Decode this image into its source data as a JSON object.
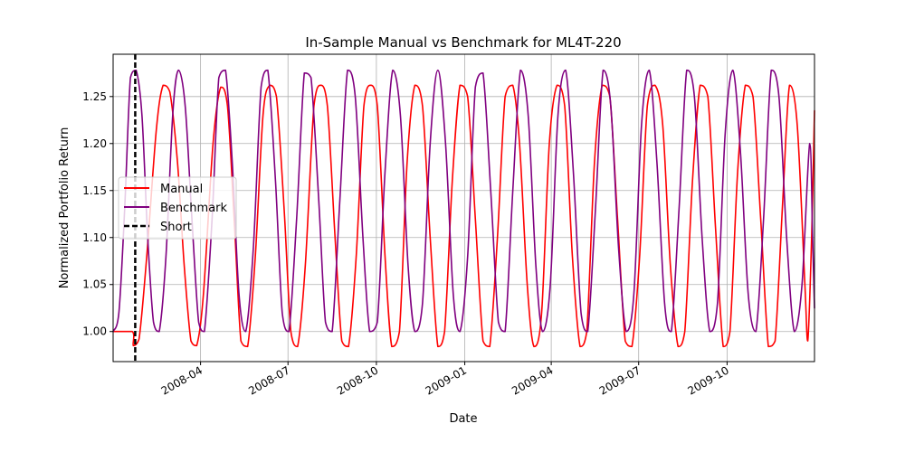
{
  "chart_data": {
    "type": "line",
    "title": "In-Sample Manual vs Benchmark for ML4T-220",
    "xlabel": "Date",
    "ylabel": "Normalized Portfolio Return",
    "xlim": [
      "2008-01-01",
      "2009-12-31"
    ],
    "ylim": [
      0.968,
      1.295
    ],
    "x_ticks": [
      "2008-04",
      "2008-07",
      "2008-10",
      "2009-01",
      "2009-04",
      "2009-07",
      "2009-10"
    ],
    "y_ticks": [
      1.0,
      1.05,
      1.1,
      1.15,
      1.2,
      1.25
    ],
    "y_tick_labels": [
      "1.00",
      "1.05",
      "1.10",
      "1.15",
      "1.20",
      "1.25"
    ],
    "grid": true,
    "legend_position": "center-left",
    "series": [
      {
        "name": "Manual",
        "color": "#ff0000",
        "points": [
          [
            "2008-01-01",
            1.0
          ],
          [
            "2008-01-21",
            1.0
          ],
          [
            "2008-01-22",
            0.985
          ],
          [
            "2008-01-28",
            0.992
          ],
          [
            "2008-02-05",
            1.08
          ],
          [
            "2008-02-15",
            1.215
          ],
          [
            "2008-02-22",
            1.262
          ],
          [
            "2008-02-29",
            1.255
          ],
          [
            "2008-03-08",
            1.18
          ],
          [
            "2008-03-15",
            1.07
          ],
          [
            "2008-03-22",
            0.99
          ],
          [
            "2008-03-28",
            0.985
          ],
          [
            "2008-04-04",
            1.04
          ],
          [
            "2008-04-14",
            1.2
          ],
          [
            "2008-04-22",
            1.26
          ],
          [
            "2008-04-29",
            1.24
          ],
          [
            "2008-05-06",
            1.12
          ],
          [
            "2008-05-13",
            0.99
          ],
          [
            "2008-05-20",
            0.984
          ],
          [
            "2008-05-28",
            1.08
          ],
          [
            "2008-06-05",
            1.23
          ],
          [
            "2008-06-12",
            1.262
          ],
          [
            "2008-06-19",
            1.25
          ],
          [
            "2008-06-27",
            1.13
          ],
          [
            "2008-07-04",
            1.0
          ],
          [
            "2008-07-11",
            0.984
          ],
          [
            "2008-07-19",
            1.07
          ],
          [
            "2008-07-28",
            1.24
          ],
          [
            "2008-08-04",
            1.262
          ],
          [
            "2008-08-11",
            1.24
          ],
          [
            "2008-08-19",
            1.1
          ],
          [
            "2008-08-26",
            0.99
          ],
          [
            "2008-09-02",
            0.984
          ],
          [
            "2008-09-10",
            1.08
          ],
          [
            "2008-09-18",
            1.24
          ],
          [
            "2008-09-25",
            1.262
          ],
          [
            "2008-10-02",
            1.24
          ],
          [
            "2008-10-10",
            1.08
          ],
          [
            "2008-10-17",
            0.984
          ],
          [
            "2008-10-25",
            1.0
          ],
          [
            "2008-11-02",
            1.18
          ],
          [
            "2008-11-10",
            1.262
          ],
          [
            "2008-11-18",
            1.24
          ],
          [
            "2008-11-26",
            1.1
          ],
          [
            "2008-12-04",
            0.984
          ],
          [
            "2008-12-11",
            1.0
          ],
          [
            "2008-12-19",
            1.16
          ],
          [
            "2008-12-27",
            1.262
          ],
          [
            "2009-01-04",
            1.25
          ],
          [
            "2009-01-12",
            1.12
          ],
          [
            "2009-01-20",
            0.99
          ],
          [
            "2009-01-27",
            0.984
          ],
          [
            "2009-02-04",
            1.1
          ],
          [
            "2009-02-12",
            1.25
          ],
          [
            "2009-02-20",
            1.262
          ],
          [
            "2009-02-27",
            1.2
          ],
          [
            "2009-03-07",
            1.05
          ],
          [
            "2009-03-14",
            0.984
          ],
          [
            "2009-03-22",
            1.02
          ],
          [
            "2009-03-30",
            1.2
          ],
          [
            "2009-04-07",
            1.262
          ],
          [
            "2009-04-15",
            1.24
          ],
          [
            "2009-04-23",
            1.08
          ],
          [
            "2009-05-01",
            0.984
          ],
          [
            "2009-05-08",
            1.0
          ],
          [
            "2009-05-16",
            1.18
          ],
          [
            "2009-05-24",
            1.262
          ],
          [
            "2009-06-01",
            1.25
          ],
          [
            "2009-06-09",
            1.12
          ],
          [
            "2009-06-17",
            0.99
          ],
          [
            "2009-06-24",
            0.984
          ],
          [
            "2009-07-02",
            1.08
          ],
          [
            "2009-07-10",
            1.24
          ],
          [
            "2009-07-18",
            1.262
          ],
          [
            "2009-07-26",
            1.22
          ],
          [
            "2009-08-03",
            1.07
          ],
          [
            "2009-08-11",
            0.984
          ],
          [
            "2009-08-18",
            1.0
          ],
          [
            "2009-08-26",
            1.16
          ],
          [
            "2009-09-03",
            1.262
          ],
          [
            "2009-09-11",
            1.25
          ],
          [
            "2009-09-19",
            1.11
          ],
          [
            "2009-09-27",
            0.984
          ],
          [
            "2009-10-04",
            1.0
          ],
          [
            "2009-10-12",
            1.17
          ],
          [
            "2009-10-20",
            1.262
          ],
          [
            "2009-10-28",
            1.25
          ],
          [
            "2009-11-05",
            1.12
          ],
          [
            "2009-11-13",
            0.984
          ],
          [
            "2009-11-20",
            0.99
          ],
          [
            "2009-11-28",
            1.14
          ],
          [
            "2009-12-05",
            1.262
          ],
          [
            "2009-12-13",
            1.22
          ],
          [
            "2009-12-21",
            1.05
          ],
          [
            "2009-12-24",
            0.99
          ],
          [
            "2009-12-28",
            1.1
          ],
          [
            "2009-12-31",
            1.235
          ]
        ]
      },
      {
        "name": "Benchmark",
        "color": "#800080",
        "points": [
          [
            "2008-01-01",
            1.0
          ],
          [
            "2008-01-07",
            1.02
          ],
          [
            "2008-01-13",
            1.13
          ],
          [
            "2008-01-19",
            1.27
          ],
          [
            "2008-01-25",
            1.278
          ],
          [
            "2008-01-31",
            1.23
          ],
          [
            "2008-02-06",
            1.1
          ],
          [
            "2008-02-12",
            1.01
          ],
          [
            "2008-02-18",
            1.0
          ],
          [
            "2008-02-25",
            1.08
          ],
          [
            "2008-03-03",
            1.23
          ],
          [
            "2008-03-09",
            1.278
          ],
          [
            "2008-03-16",
            1.24
          ],
          [
            "2008-03-23",
            1.12
          ],
          [
            "2008-03-30",
            1.01
          ],
          [
            "2008-04-05",
            1.0
          ],
          [
            "2008-04-13",
            1.12
          ],
          [
            "2008-04-20",
            1.27
          ],
          [
            "2008-04-27",
            1.278
          ],
          [
            "2008-05-04",
            1.18
          ],
          [
            "2008-05-11",
            1.04
          ],
          [
            "2008-05-18",
            1.0
          ],
          [
            "2008-05-26",
            1.09
          ],
          [
            "2008-06-03",
            1.26
          ],
          [
            "2008-06-10",
            1.278
          ],
          [
            "2008-06-18",
            1.16
          ],
          [
            "2008-06-25",
            1.02
          ],
          [
            "2008-07-02",
            1.0
          ],
          [
            "2008-07-10",
            1.12
          ],
          [
            "2008-07-18",
            1.275
          ],
          [
            "2008-07-25",
            1.27
          ],
          [
            "2008-08-02",
            1.14
          ],
          [
            "2008-08-09",
            1.01
          ],
          [
            "2008-08-16",
            1.0
          ],
          [
            "2008-08-24",
            1.14
          ],
          [
            "2008-09-01",
            1.278
          ],
          [
            "2008-09-09",
            1.25
          ],
          [
            "2008-09-17",
            1.1
          ],
          [
            "2008-09-24",
            1.0
          ],
          [
            "2008-10-02",
            1.01
          ],
          [
            "2008-10-10",
            1.17
          ],
          [
            "2008-10-18",
            1.278
          ],
          [
            "2008-10-26",
            1.23
          ],
          [
            "2008-11-03",
            1.07
          ],
          [
            "2008-11-10",
            1.0
          ],
          [
            "2008-11-18",
            1.03
          ],
          [
            "2008-11-26",
            1.2
          ],
          [
            "2008-12-04",
            1.278
          ],
          [
            "2008-12-12",
            1.2
          ],
          [
            "2008-12-20",
            1.04
          ],
          [
            "2008-12-27",
            1.0
          ],
          [
            "2009-01-04",
            1.08
          ],
          [
            "2009-01-12",
            1.26
          ],
          [
            "2009-01-20",
            1.275
          ],
          [
            "2009-01-28",
            1.15
          ],
          [
            "2009-02-05",
            1.01
          ],
          [
            "2009-02-12",
            1.0
          ],
          [
            "2009-02-20",
            1.15
          ],
          [
            "2009-02-28",
            1.278
          ],
          [
            "2009-03-08",
            1.23
          ],
          [
            "2009-03-16",
            1.07
          ],
          [
            "2009-03-23",
            1.0
          ],
          [
            "2009-03-31",
            1.05
          ],
          [
            "2009-04-08",
            1.23
          ],
          [
            "2009-04-16",
            1.278
          ],
          [
            "2009-04-24",
            1.17
          ],
          [
            "2009-05-02",
            1.02
          ],
          [
            "2009-05-09",
            1.0
          ],
          [
            "2009-05-17",
            1.13
          ],
          [
            "2009-05-25",
            1.278
          ],
          [
            "2009-06-02",
            1.24
          ],
          [
            "2009-06-10",
            1.09
          ],
          [
            "2009-06-18",
            1.0
          ],
          [
            "2009-06-26",
            1.04
          ],
          [
            "2009-07-04",
            1.22
          ],
          [
            "2009-07-12",
            1.278
          ],
          [
            "2009-07-20",
            1.18
          ],
          [
            "2009-07-28",
            1.03
          ],
          [
            "2009-08-04",
            1.0
          ],
          [
            "2009-08-12",
            1.13
          ],
          [
            "2009-08-20",
            1.278
          ],
          [
            "2009-08-28",
            1.25
          ],
          [
            "2009-09-05",
            1.1
          ],
          [
            "2009-09-13",
            1.0
          ],
          [
            "2009-09-21",
            1.03
          ],
          [
            "2009-09-29",
            1.21
          ],
          [
            "2009-10-07",
            1.278
          ],
          [
            "2009-10-15",
            1.19
          ],
          [
            "2009-10-23",
            1.04
          ],
          [
            "2009-10-31",
            1.0
          ],
          [
            "2009-11-08",
            1.12
          ],
          [
            "2009-11-16",
            1.278
          ],
          [
            "2009-11-24",
            1.25
          ],
          [
            "2009-12-02",
            1.1
          ],
          [
            "2009-12-10",
            1.0
          ],
          [
            "2009-12-18",
            1.05
          ],
          [
            "2009-12-26",
            1.2
          ],
          [
            "2009-12-29",
            1.1
          ],
          [
            "2009-12-31",
            1.025
          ]
        ]
      }
    ],
    "vlines": [
      {
        "name": "Short",
        "x": "2008-01-24",
        "color": "#000000",
        "style": "dashed"
      }
    ]
  }
}
